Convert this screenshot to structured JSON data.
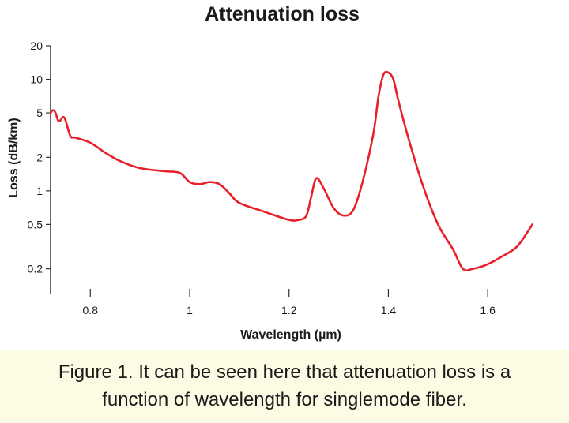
{
  "chart_data": {
    "type": "line",
    "title": "Attenuation loss",
    "xlabel": "Wavelength (µm)",
    "ylabel": "Loss (dB/km)",
    "yscale": "log",
    "xlim": [
      0.72,
      1.7
    ],
    "ylim": [
      0.12,
      20
    ],
    "xticks": [
      0.8,
      1.0,
      1.2,
      1.4,
      1.6
    ],
    "xtick_labels": [
      "0.8",
      "1",
      "1.2",
      "1.4",
      "1.6"
    ],
    "yticks": [
      0.2,
      0.5,
      1,
      2,
      5,
      10,
      20
    ],
    "ytick_labels": [
      "0.2",
      "0.5",
      "1",
      "2",
      "5",
      "10",
      "20"
    ],
    "grid": false,
    "line_color": "#e8202a",
    "series": [
      {
        "x": [
          0.72,
          0.725,
          0.73,
          0.735,
          0.74,
          0.745,
          0.75,
          0.76,
          0.77,
          0.8,
          0.83,
          0.86,
          0.9,
          0.95,
          0.98,
          1.0,
          1.02,
          1.04,
          1.06,
          1.08,
          1.1,
          1.15,
          1.2,
          1.22,
          1.235,
          1.245,
          1.255,
          1.27,
          1.29,
          1.31,
          1.33,
          1.35,
          1.37,
          1.38,
          1.39,
          1.4,
          1.41,
          1.42,
          1.44,
          1.47,
          1.5,
          1.53,
          1.55,
          1.57,
          1.6,
          1.63,
          1.66,
          1.69
        ],
        "y": [
          5.0,
          5.3,
          5.0,
          4.3,
          4.3,
          4.6,
          4.3,
          3.1,
          3.0,
          2.7,
          2.2,
          1.85,
          1.6,
          1.5,
          1.45,
          1.2,
          1.15,
          1.2,
          1.15,
          0.95,
          0.78,
          0.65,
          0.55,
          0.55,
          0.6,
          0.9,
          1.3,
          1.05,
          0.7,
          0.6,
          0.68,
          1.3,
          3.3,
          7.0,
          11.0,
          11.5,
          10.0,
          6.5,
          3.0,
          1.1,
          0.5,
          0.3,
          0.2,
          0.2,
          0.22,
          0.26,
          0.32,
          0.5
        ]
      }
    ]
  },
  "caption": {
    "line1": "Figure 1. It can be seen here that attenuation loss is a",
    "line2": "function of wavelength for singlemode fiber.",
    "background": "#fcfbe3"
  }
}
